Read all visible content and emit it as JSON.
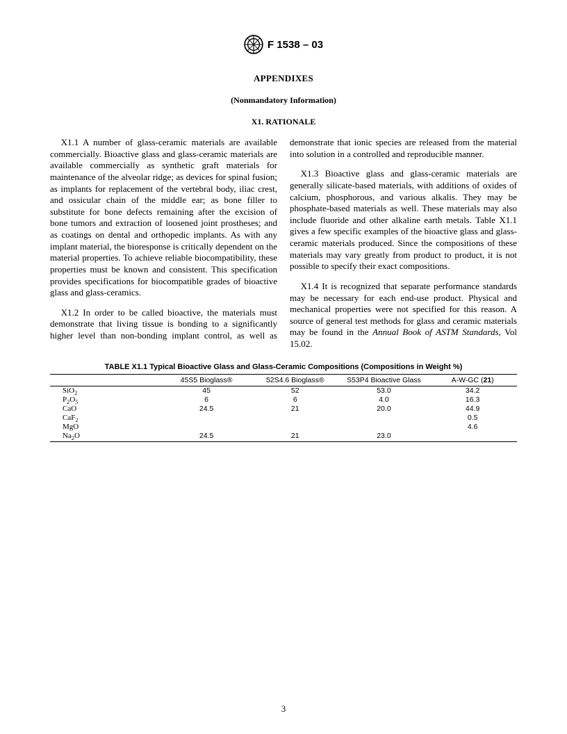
{
  "header": {
    "standard_number": "F 1538 – 03"
  },
  "headings": {
    "appendixes": "APPENDIXES",
    "nonmandatory": "(Nonmandatory Information)",
    "section": "X1.   RATIONALE"
  },
  "paragraphs": {
    "x1_1": "X1.1   A number of glass-ceramic materials are available commercially. Bioactive glass and glass-ceramic materials are available commercially as synthetic graft materials for maintenance of the alveolar ridge; as devices for spinal fusion; as implants for replacement of the vertebral body, iliac crest, and ossicular chain of the middle ear; as bone filler to substitute for bone defects remaining after the excision of bone tumors and extraction of loosened joint prostheses; and as coatings on dental and orthopedic implants. As with any implant material, the bioresponse is critically dependent on the material properties. To achieve reliable biocompatibility, these properties must be known and consistent. This specification provides specifications for biocompatible grades of bioactive glass and glass-ceramics.",
    "x1_2": "X1.2   In order to be called bioactive, the materials must demonstrate that living tissue is bonding to a significantly higher level than non-bonding implant control, as well as demonstrate that ionic species are released from the material into solution in a controlled and reproducible manner.",
    "x1_3": "X1.3   Bioactive glass and glass-ceramic materials are generally silicate-based materials, with additions of oxides of calcium, phosphorous, and various alkalis. They may be phosphate-based materials as well. These materials may also include fluoride and other alkaline earth metals. Table X1.1 gives a few specific examples of the bioactive glass and glass-ceramic materials produced. Since the compositions of these materials may vary greatly from product to product, it is not possible to specify their exact compositions.",
    "x1_4_a": "X1.4   It is recognized that separate performance standards may be necessary for each end-use product. Physical and mechanical properties were not specified for this reason. A source of general test methods for glass and ceramic materials may be found in the ",
    "x1_4_italic": "Annual Book of ASTM Standards",
    "x1_4_b": ", Vol 15.02."
  },
  "table": {
    "title": "TABLE X1.1  Typical Bioactive Glass and Glass-Ceramic Compositions (Compositions in Weight %)",
    "columns": {
      "c0": "",
      "c1": "45S5 Bioglass®",
      "c2": "52S4.6 Bioglass®",
      "c3": "S53P4 Bioactive Glass",
      "c4_a": "A-W-GC (",
      "c4_b": "21",
      "c4_c": ")"
    },
    "rows": [
      {
        "label_html": "SiO<span class=\"sub\">2</span>",
        "c1": "45",
        "c2": "52",
        "c3": "53.0",
        "c4": "34.2"
      },
      {
        "label_html": "P<span class=\"sub\">2</span>O<span class=\"sub\">5</span>",
        "c1": "6",
        "c2": "6",
        "c3": "4.0",
        "c4": "16.3"
      },
      {
        "label_html": "CaO",
        "c1": "24.5",
        "c2": "21",
        "c3": "20.0",
        "c4": "44.9"
      },
      {
        "label_html": "CaF<span class=\"sub\">2</span>",
        "c1": "",
        "c2": "",
        "c3": "",
        "c4": "0.5"
      },
      {
        "label_html": "MgO",
        "c1": "",
        "c2": "",
        "c3": "",
        "c4": "4.6"
      },
      {
        "label_html": "Na<span class=\"sub\">2</span>O",
        "c1": "24.5",
        "c2": "21",
        "c3": "23.0",
        "c4": ""
      }
    ]
  },
  "page_number": "3",
  "style": {
    "body_font_size_pt": 10,
    "table_font_size_pt": 8,
    "text_color": "#000000",
    "background_color": "#ffffff",
    "rule_color": "#000000"
  }
}
